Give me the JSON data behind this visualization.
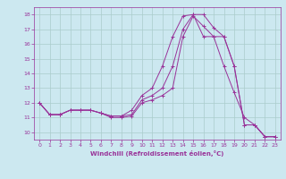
{
  "xlabel": "Windchill (Refroidissement éolien,°C)",
  "bg_color": "#cce8f0",
  "grid_color": "#aacccc",
  "line_color": "#993399",
  "xlim": [
    -0.5,
    23.5
  ],
  "ylim": [
    9.5,
    18.5
  ],
  "yticks": [
    10,
    11,
    12,
    13,
    14,
    15,
    16,
    17,
    18
  ],
  "xticks": [
    0,
    1,
    2,
    3,
    4,
    5,
    6,
    7,
    8,
    9,
    10,
    11,
    12,
    13,
    14,
    15,
    16,
    17,
    18,
    19,
    20,
    21,
    22,
    23
  ],
  "series": [
    [
      12.0,
      11.2,
      11.2,
      11.5,
      11.5,
      11.5,
      11.3,
      11.0,
      11.0,
      11.1,
      12.0,
      12.2,
      12.5,
      13.0,
      16.5,
      17.9,
      17.2,
      16.5,
      14.5,
      12.7,
      11.0,
      10.5,
      9.7,
      9.7
    ],
    [
      12.0,
      11.2,
      11.2,
      11.5,
      11.5,
      11.5,
      11.3,
      11.1,
      11.1,
      11.2,
      12.2,
      12.5,
      13.0,
      14.5,
      17.0,
      18.0,
      18.0,
      17.1,
      16.5,
      14.5,
      10.5,
      10.5,
      9.7,
      9.7
    ],
    [
      12.0,
      11.2,
      11.2,
      11.5,
      11.5,
      11.5,
      11.3,
      11.1,
      11.1,
      11.5,
      12.5,
      13.0,
      14.5,
      16.5,
      17.9,
      18.0,
      16.5,
      16.5,
      16.5,
      14.5,
      10.5,
      10.5,
      9.7,
      9.7
    ]
  ]
}
